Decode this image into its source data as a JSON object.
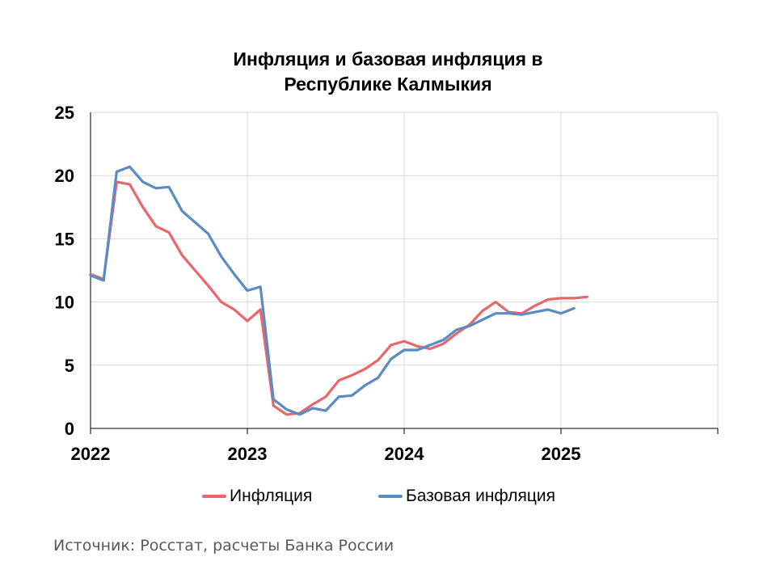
{
  "chart_data": {
    "type": "line",
    "title": "Инфляция и базовая инфляция в\nРеспублике Калмыкия",
    "xlabel": "",
    "ylabel": "",
    "ylim": [
      0,
      25
    ],
    "yticks": [
      0,
      5,
      10,
      15,
      20,
      25
    ],
    "xlim": [
      "2022-01",
      "2026-01"
    ],
    "xticks": [
      "2022",
      "2023",
      "2024",
      "2025"
    ],
    "grid": true,
    "legend_position": "bottom",
    "x": [
      "2022-01",
      "2022-02",
      "2022-03",
      "2022-04",
      "2022-05",
      "2022-06",
      "2022-07",
      "2022-08",
      "2022-09",
      "2022-10",
      "2022-11",
      "2022-12",
      "2023-01",
      "2023-02",
      "2023-03",
      "2023-04",
      "2023-05",
      "2023-06",
      "2023-07",
      "2023-08",
      "2023-09",
      "2023-10",
      "2023-11",
      "2023-12",
      "2024-01",
      "2024-02",
      "2024-03",
      "2024-04",
      "2024-05",
      "2024-06",
      "2024-07",
      "2024-08",
      "2024-09",
      "2024-10",
      "2024-11",
      "2024-12",
      "2025-01",
      "2025-02",
      "2025-03"
    ],
    "series": [
      {
        "name": "Инфляция",
        "color": "#e8676a",
        "values": [
          12.2,
          11.8,
          19.5,
          19.3,
          17.5,
          16.0,
          15.5,
          13.7,
          12.5,
          11.3,
          10.0,
          9.4,
          8.5,
          9.4,
          1.8,
          1.1,
          1.2,
          1.9,
          2.5,
          3.8,
          4.2,
          4.7,
          5.4,
          6.6,
          6.9,
          6.5,
          6.3,
          6.7,
          7.5,
          8.2,
          9.3,
          10.0,
          9.2,
          9.1,
          9.7,
          10.2,
          10.3,
          10.3,
          10.4
        ]
      },
      {
        "name": "Базовая инфляция",
        "color": "#5b8bc3",
        "values": [
          12.1,
          11.7,
          20.3,
          20.7,
          19.5,
          19.0,
          19.1,
          17.2,
          16.3,
          15.4,
          13.6,
          12.2,
          10.9,
          11.2,
          2.3,
          1.5,
          1.1,
          1.6,
          1.4,
          2.5,
          2.6,
          3.4,
          4.0,
          5.5,
          6.2,
          6.2,
          6.6,
          7.0,
          7.8,
          8.1,
          8.6,
          9.1,
          9.1,
          9.0,
          9.2,
          9.4,
          9.1,
          9.5,
          null
        ]
      }
    ]
  },
  "legend": {
    "items": [
      "Инфляция",
      "Базовая инфляция"
    ]
  },
  "source_note": "Источник: Росстат, расчеты Банка России"
}
